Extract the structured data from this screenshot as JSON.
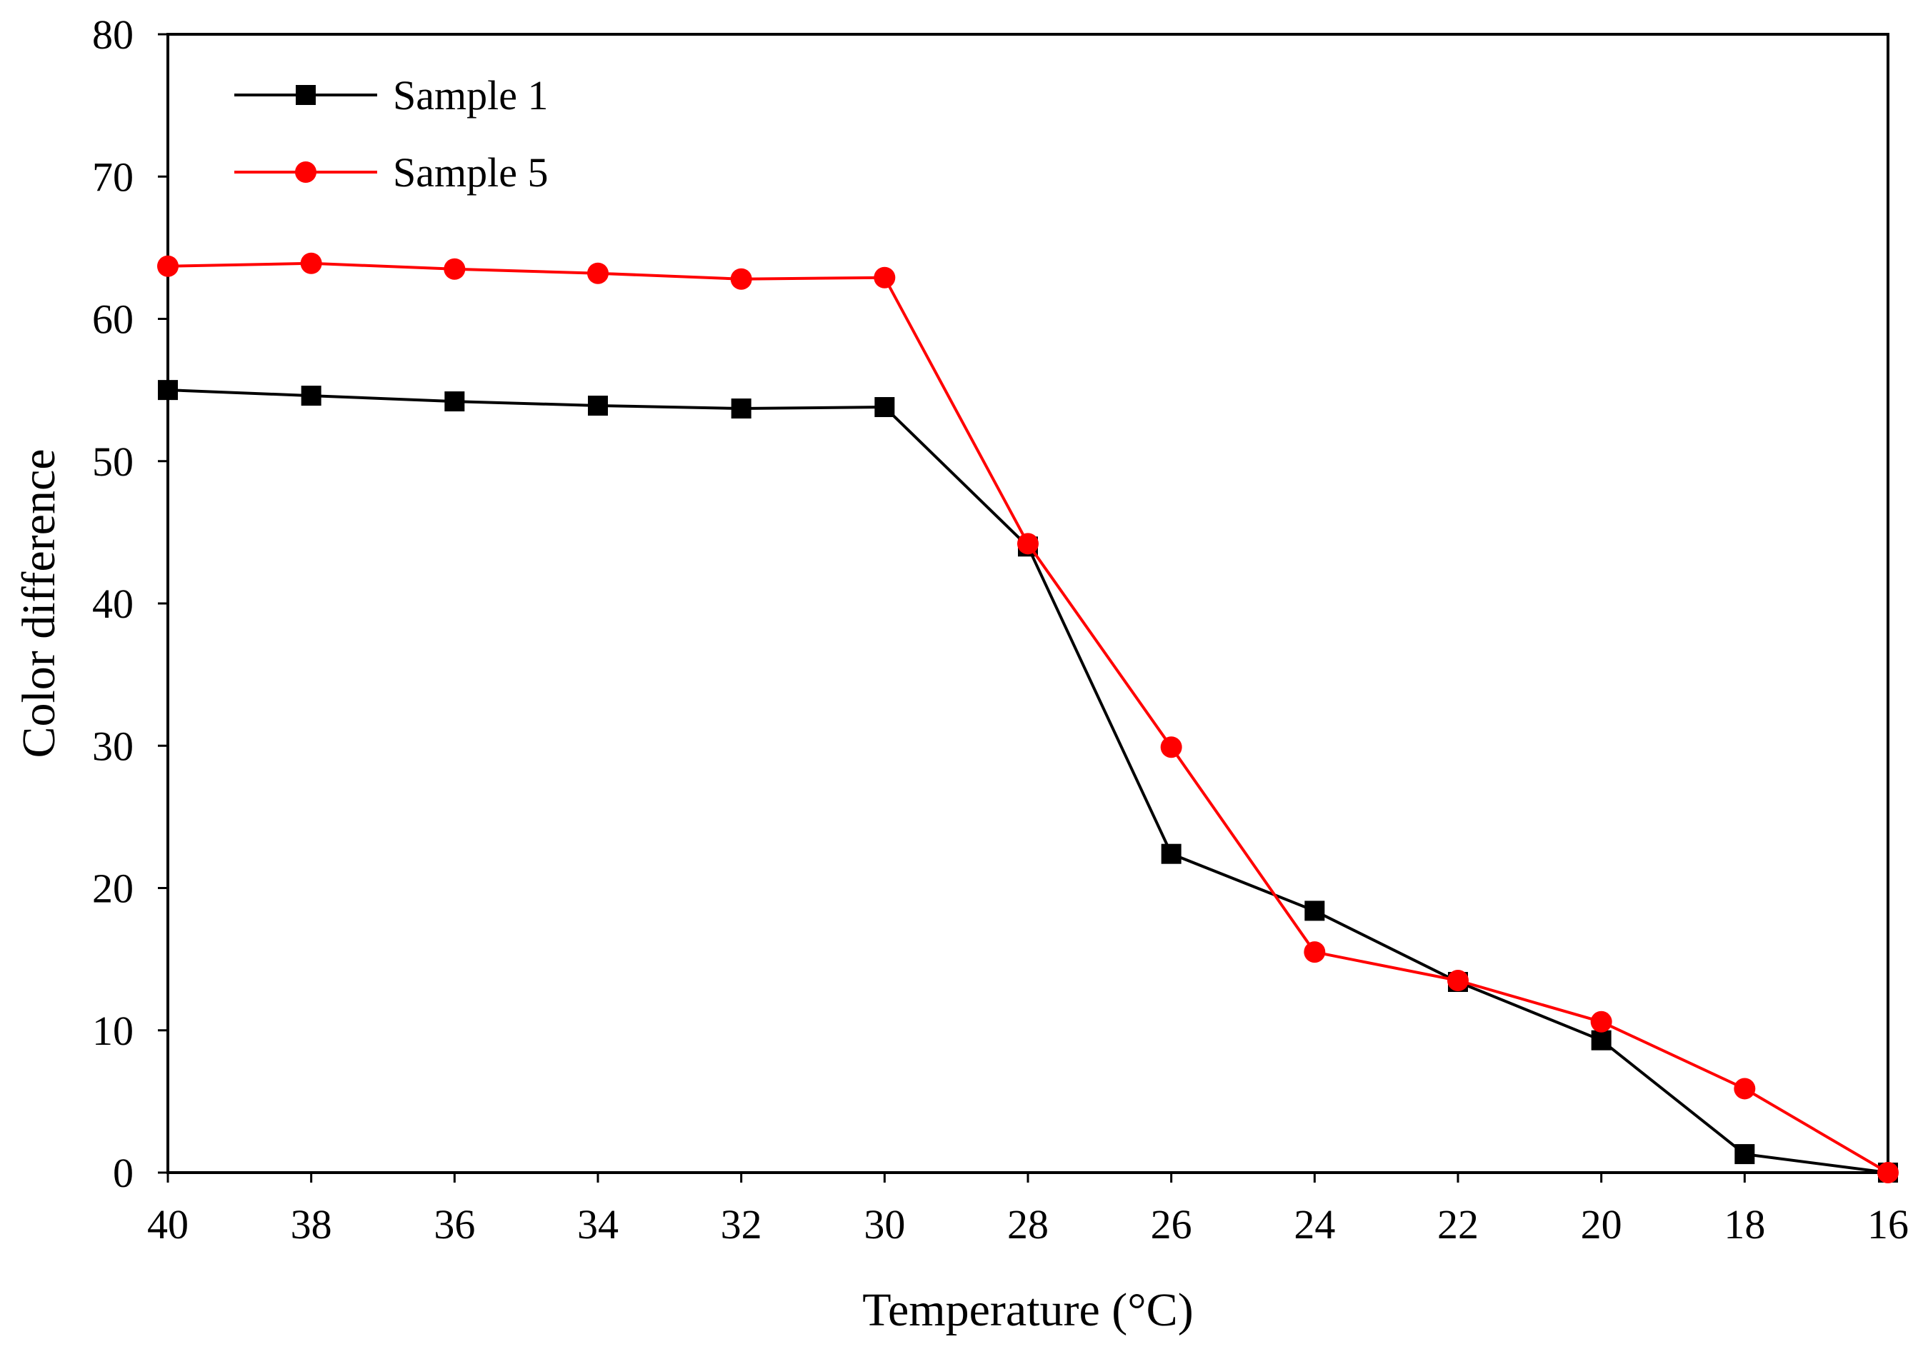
{
  "chart_data": {
    "type": "line",
    "title": "",
    "xlabel": "Temperature (°C)",
    "ylabel": "Color difference",
    "x": [
      40,
      38,
      36,
      34,
      32,
      30,
      28,
      26,
      24,
      22,
      20,
      18,
      16
    ],
    "x_reversed": true,
    "xlim": [
      40,
      16
    ],
    "ylim": [
      0,
      80
    ],
    "x_ticks": [
      "40",
      "38",
      "36",
      "34",
      "32",
      "30",
      "28",
      "26",
      "24",
      "22",
      "20",
      "18",
      "16"
    ],
    "y_ticks": [
      "0",
      "10",
      "20",
      "30",
      "40",
      "50",
      "60",
      "70",
      "80"
    ],
    "grid": false,
    "legend_position": "top-left",
    "series": [
      {
        "name": "Sample 1",
        "color": "#000000",
        "marker": "square",
        "values": [
          55.0,
          54.6,
          54.2,
          53.9,
          53.7,
          53.8,
          44.0,
          22.4,
          18.4,
          13.4,
          9.3,
          1.3,
          0.0
        ]
      },
      {
        "name": "Sample 5",
        "color": "#ff0000",
        "marker": "circle",
        "values": [
          63.7,
          63.9,
          63.5,
          63.2,
          62.8,
          62.9,
          44.2,
          29.9,
          15.5,
          13.5,
          10.6,
          5.9,
          0.0
        ]
      }
    ]
  }
}
